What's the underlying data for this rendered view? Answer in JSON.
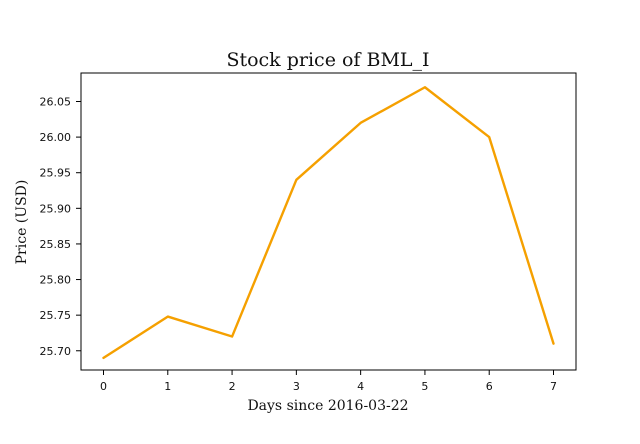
{
  "chart_data": {
    "type": "line",
    "title": "Stock price of BML_I",
    "xlabel": "Days since 2016-03-22",
    "ylabel": "Price (USD)",
    "x": [
      0,
      1,
      2,
      3,
      4,
      5,
      6,
      7
    ],
    "series": [
      {
        "values": [
          25.69,
          25.748,
          25.72,
          25.94,
          26.02,
          26.07,
          26.0,
          25.71
        ],
        "color": "#f5a000"
      }
    ],
    "xlim": [
      -0.35,
      7.35
    ],
    "ylim": [
      25.673,
      26.09
    ],
    "xticks": [
      0,
      1,
      2,
      3,
      4,
      5,
      6,
      7
    ],
    "xtick_labels": [
      "0",
      "1",
      "2",
      "3",
      "4",
      "5",
      "6",
      "7"
    ],
    "yticks": [
      25.7,
      25.75,
      25.8,
      25.85,
      25.9,
      25.95,
      26.0,
      26.05
    ],
    "ytick_labels": [
      "25.70",
      "25.75",
      "25.80",
      "25.85",
      "25.90",
      "25.95",
      "26.00",
      "26.05"
    ],
    "grid": false,
    "legend": "none"
  }
}
